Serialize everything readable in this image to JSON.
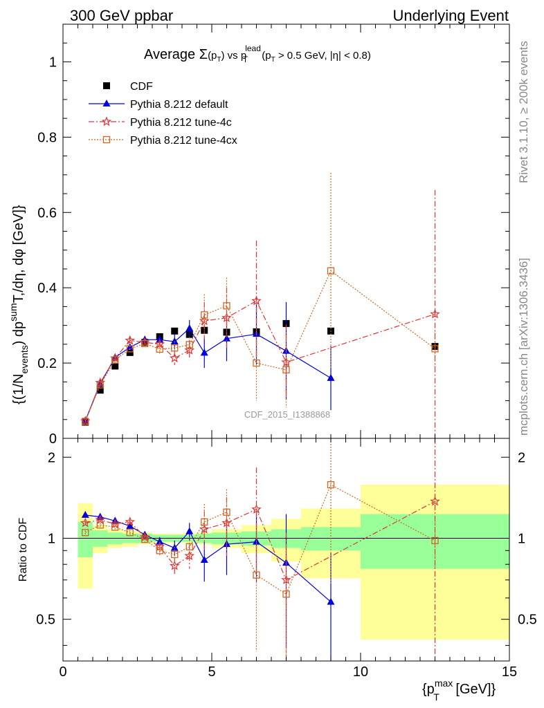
{
  "header": {
    "left": "300 GeV ppbar",
    "right": "Underlying Event",
    "side_rivet": "Rivet 3.1.10, ≥ 200k events",
    "side_mcplots": "mcplots.cern.ch [arXiv:1306.3436]",
    "watermark": "CDF_2015_I1388868"
  },
  "chart_data": [
    {
      "type": "line",
      "panel": "main",
      "title_parts": {
        "prefix": "Average ",
        "sigma": "Σ",
        "paren_open": "(p",
        "sub_T": "T",
        "paren_close": ")",
        "vs": " vs p",
        "sup_lead": "lead",
        "cut": "(p",
        "cut_rest": " > 0.5 GeV, |η| < 0.8)"
      },
      "ylabel_parts": {
        "a": "{(1/N",
        "sub_events": "events",
        "b": ") dp",
        "sup_sum": "sum",
        "c": "T",
        "d": ",/dη, dφ [GeV]}"
      },
      "xlim": [
        0,
        15
      ],
      "ylim": [
        0,
        1.1
      ],
      "yticks": [
        "0",
        "0.2",
        "0.4",
        "0.6",
        "0.8",
        "1"
      ],
      "ytick_values": [
        0,
        0.2,
        0.4,
        0.6,
        0.8,
        1.0
      ],
      "legend_position": "top-left",
      "series": [
        {
          "name": "CDF",
          "color": "#000000",
          "marker": "square",
          "x": [
            0.75,
            1.25,
            1.75,
            2.25,
            2.75,
            3.25,
            3.75,
            4.25,
            4.75,
            5.5,
            6.5,
            7.5,
            9.0,
            12.5
          ],
          "y": [
            0.043,
            0.128,
            0.192,
            0.228,
            0.255,
            0.27,
            0.285,
            0.276,
            0.287,
            0.282,
            0.283,
            0.305,
            0.285,
            0.244
          ]
        },
        {
          "name": "Pythia 8.212 default",
          "color": "#0000dd",
          "marker": "triangle",
          "x": [
            0.75,
            1.25,
            1.75,
            2.25,
            2.75,
            3.25,
            3.75,
            4.25,
            4.75,
            5.5,
            6.5,
            7.5,
            9.0
          ],
          "y": [
            0.047,
            0.145,
            0.215,
            0.242,
            0.262,
            0.262,
            0.257,
            0.292,
            0.227,
            0.265,
            0.277,
            0.232,
            0.16
          ],
          "err": [
            0.004,
            0.005,
            0.006,
            0.008,
            0.01,
            0.012,
            0.02,
            0.022,
            0.04,
            0.06,
            0.08,
            0.13,
            0.085
          ]
        },
        {
          "name": "Pythia 8.212 tune-4c",
          "color": "#dd3333",
          "marker": "star",
          "x": [
            0.75,
            1.25,
            1.75,
            2.25,
            2.75,
            3.25,
            3.75,
            4.25,
            4.75,
            5.5,
            6.5,
            7.5,
            12.5
          ],
          "y": [
            0.046,
            0.148,
            0.213,
            0.26,
            0.255,
            0.25,
            0.213,
            0.234,
            0.312,
            0.32,
            0.365,
            0.202,
            0.33
          ],
          "err": [
            0.004,
            0.005,
            0.006,
            0.008,
            0.01,
            0.012,
            0.018,
            0.025,
            0.05,
            0.08,
            0.16,
            0.1,
            0.33
          ]
        },
        {
          "name": "Pythia 8.212 tune-4cx",
          "color": "#cc6622",
          "marker": "open-square",
          "x": [
            0.75,
            1.25,
            1.75,
            2.25,
            2.75,
            3.25,
            3.75,
            4.25,
            4.75,
            5.5,
            6.5,
            7.5,
            9.0,
            12.5
          ],
          "y": [
            0.045,
            0.142,
            0.208,
            0.238,
            0.252,
            0.237,
            0.24,
            0.249,
            0.328,
            0.352,
            0.2,
            0.182,
            0.445,
            0.238
          ],
          "err": [
            0.004,
            0.005,
            0.006,
            0.008,
            0.01,
            0.012,
            0.018,
            0.02,
            0.055,
            0.075,
            0.1,
            0.1,
            0.26,
            0.05
          ]
        }
      ]
    },
    {
      "type": "line",
      "panel": "ratio",
      "ylabel": "Ratio to CDF",
      "xlabel_parts": {
        "a": "{p",
        "sup_max": "max",
        "sub_T": "T",
        "b": " [GeV]}"
      },
      "xlim": [
        0,
        15
      ],
      "ylim": [
        0.35,
        2.35
      ],
      "xticks": [
        "0",
        "5",
        "10",
        "15"
      ],
      "xtick_values": [
        0,
        5,
        10,
        15
      ],
      "yticks": [
        "0.5",
        "1",
        "2"
      ],
      "ytick_values": [
        0.5,
        1.0,
        2.0
      ],
      "band_colors": {
        "inner": "#99ff99",
        "outer": "#ffff99"
      },
      "bands": {
        "edges": [
          0.5,
          1.0,
          1.5,
          2.0,
          2.5,
          3.0,
          3.5,
          4.0,
          4.5,
          5.0,
          6.0,
          7.0,
          8.0,
          10.0,
          15.0
        ],
        "inner_low": [
          0.85,
          0.93,
          0.95,
          0.96,
          0.96,
          0.97,
          0.97,
          0.97,
          0.96,
          0.95,
          0.94,
          0.92,
          0.9,
          0.77
        ],
        "inner_high": [
          1.15,
          1.07,
          1.05,
          1.04,
          1.04,
          1.03,
          1.03,
          1.03,
          1.04,
          1.05,
          1.06,
          1.08,
          1.1,
          1.23
        ],
        "outer_low": [
          0.65,
          0.88,
          0.92,
          0.93,
          0.95,
          0.96,
          0.96,
          0.96,
          0.95,
          0.92,
          0.88,
          0.82,
          0.71,
          0.42
        ],
        "outer_high": [
          1.35,
          1.12,
          1.08,
          1.07,
          1.05,
          1.04,
          1.04,
          1.04,
          1.05,
          1.08,
          1.12,
          1.18,
          1.29,
          1.58
        ]
      },
      "series": [
        {
          "name": "Pythia 8.212 default",
          "color": "#0000dd",
          "marker": "triangle",
          "x": [
            0.75,
            1.25,
            1.75,
            2.25,
            2.75,
            3.25,
            3.75,
            4.25,
            4.75,
            5.5,
            6.5,
            7.5,
            9.0
          ],
          "y": [
            1.22,
            1.2,
            1.16,
            1.11,
            1.03,
            0.97,
            0.92,
            1.06,
            0.83,
            0.95,
            0.97,
            0.81,
            0.58
          ],
          "err": [
            0.02,
            0.02,
            0.02,
            0.02,
            0.03,
            0.04,
            0.06,
            0.08,
            0.14,
            0.22,
            0.28,
            0.42,
            0.3
          ]
        },
        {
          "name": "Pythia 8.212 tune-4c",
          "color": "#dd3333",
          "marker": "star",
          "x": [
            0.75,
            1.25,
            1.75,
            2.25,
            2.75,
            3.25,
            3.75,
            4.25,
            4.75,
            5.5,
            6.5,
            7.5,
            12.5
          ],
          "y": [
            1.14,
            1.17,
            1.13,
            1.15,
            1.01,
            0.93,
            0.79,
            0.86,
            1.08,
            1.14,
            1.28,
            0.7,
            1.37
          ],
          "err": [
            0.02,
            0.02,
            0.02,
            0.02,
            0.03,
            0.04,
            0.06,
            0.09,
            0.18,
            0.28,
            0.55,
            0.35,
            1.4
          ]
        },
        {
          "name": "Pythia 8.212 tune-4cx",
          "color": "#cc6622",
          "marker": "open-square",
          "x": [
            0.75,
            1.25,
            1.75,
            2.25,
            2.75,
            3.25,
            3.75,
            4.25,
            4.75,
            5.5,
            6.5,
            7.5,
            9.0,
            12.5
          ],
          "y": [
            1.05,
            1.12,
            1.1,
            1.05,
            0.99,
            0.9,
            0.87,
            0.93,
            1.15,
            1.25,
            0.73,
            0.62,
            1.58,
            0.98
          ],
          "err": [
            0.02,
            0.02,
            0.02,
            0.02,
            0.03,
            0.04,
            0.06,
            0.08,
            0.19,
            0.27,
            0.35,
            0.33,
            0.9,
            0.2
          ]
        }
      ]
    }
  ]
}
